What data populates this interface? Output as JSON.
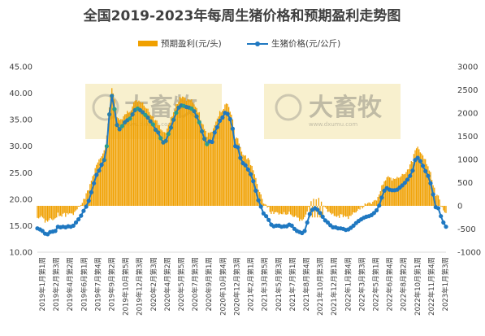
{
  "chart_data": {
    "type": "bar+line",
    "title": "全国2019-2023年每周生猪价格和预期盈利走势图",
    "legend": [
      {
        "name": "预期盈利(元/头)",
        "color": "#F0A000",
        "kind": "bar"
      },
      {
        "name": "生猪价格(元/公斤)",
        "color": "#1F78C1",
        "kind": "line"
      }
    ],
    "legend_position": "top-center",
    "y_left": {
      "min": 10,
      "max": 45,
      "ticks": [
        "10.00",
        "15.00",
        "20.00",
        "25.00",
        "30.00",
        "35.00",
        "40.00",
        "45.00"
      ]
    },
    "y_right": {
      "min": -1000,
      "max": 3000,
      "ticks": [
        "-1000",
        "-500",
        "0",
        "500",
        "1000",
        "1500",
        "2000",
        "2500",
        "3000"
      ]
    },
    "x_tick_labels": [
      "2019年1月第1周",
      "2019年2月第3周",
      "2019年4月第2周",
      "2019年6月第1周",
      "2019年7月第4周",
      "2019年9月第2周",
      "2019年10月第5周",
      "2019年12月第3周",
      "2020年2月第3周",
      "2020年4月第2周",
      "2020年5月第5周",
      "2020年7月第3周",
      "2020年9月第1周",
      "2020年10月第4周",
      "2020年12月第3周",
      "2021年2月第1周",
      "2021年3月第5周",
      "2021年5月第3周",
      "2021年7月第1周",
      "2021年8月第4周",
      "2021年10月第3周",
      "2021年12月第1周",
      "2022年1月第4周",
      "2022年3月第3周",
      "2022年5月第1周",
      "2022年6月第4周",
      "2022年8月第2周",
      "2022年10月第1周",
      "2022年11月第4周",
      "2023年1月第3周"
    ],
    "watermark": {
      "text": "大畜牧",
      "sub": "www.dxumu.com"
    },
    "price_series_name": "生猪价格(元/公斤)",
    "price_values": [
      14.5,
      14.3,
      14.0,
      13.5,
      13.4,
      13.8,
      13.9,
      14.0,
      14.8,
      14.7,
      14.8,
      14.7,
      14.9,
      14.8,
      15.0,
      15.6,
      16.2,
      16.9,
      17.8,
      18.6,
      19.7,
      21.3,
      23.0,
      24.6,
      25.4,
      26.5,
      27.4,
      30.0,
      36.0,
      39.5,
      37.0,
      34.0,
      33.2,
      33.8,
      34.5,
      34.9,
      35.2,
      36.0,
      36.8,
      37.1,
      36.8,
      36.4,
      35.9,
      35.4,
      34.7,
      34.1,
      33.1,
      32.6,
      31.5,
      30.7,
      31.0,
      32.3,
      33.5,
      35.0,
      36.3,
      37.3,
      37.7,
      37.6,
      37.4,
      37.3,
      37.1,
      36.6,
      35.6,
      34.5,
      32.8,
      31.4,
      30.4,
      30.9,
      30.8,
      32.6,
      33.6,
      34.8,
      35.4,
      36.3,
      36.1,
      35.1,
      33.3,
      30.0,
      29.8,
      27.8,
      26.8,
      26.4,
      25.6,
      24.7,
      23.4,
      21.6,
      19.8,
      18.6,
      17.3,
      16.8,
      16.1,
      15.2,
      14.9,
      15.0,
      15.0,
      14.8,
      14.9,
      14.9,
      15.2,
      15.0,
      14.4,
      14.0,
      13.8,
      13.6,
      14.0,
      15.6,
      17.2,
      18.0,
      18.3,
      18.0,
      17.4,
      16.7,
      16.0,
      15.6,
      15.1,
      14.7,
      14.7,
      14.5,
      14.5,
      14.4,
      14.2,
      14.3,
      14.6,
      15.0,
      15.5,
      15.9,
      16.2,
      16.5,
      16.7,
      16.8,
      17.0,
      17.4,
      17.9,
      18.8,
      20.3,
      21.6,
      22.1,
      21.8,
      21.7,
      21.7,
      21.8,
      22.2,
      22.6,
      23.1,
      23.7,
      24.4,
      25.4,
      27.4,
      27.8,
      27.2,
      26.3,
      25.3,
      24.4,
      23.0,
      20.9,
      18.5,
      18.3,
      16.8,
      15.6,
      14.8
    ]
  }
}
